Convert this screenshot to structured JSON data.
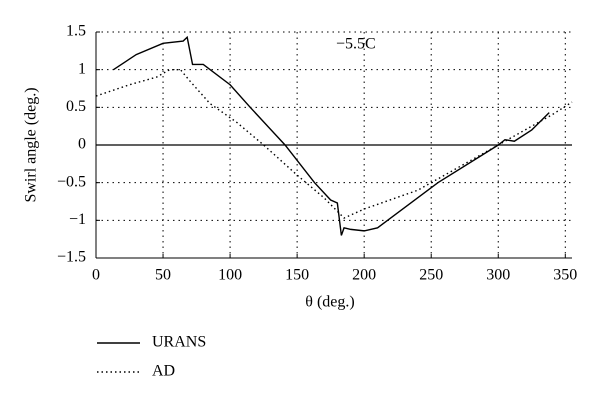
{
  "chart_data": {
    "type": "line",
    "x_label": "θ (deg.)",
    "y_label": "Swirl angle (deg.)",
    "annotation": "−5.5C",
    "xlim": [
      0,
      355
    ],
    "ylim": [
      -1.5,
      1.5
    ],
    "xticks": [
      0,
      50,
      100,
      150,
      200,
      250,
      300,
      350
    ],
    "yticks": [
      {
        "value": -1.5,
        "label": "−1.5"
      },
      {
        "value": -1,
        "label": "−1"
      },
      {
        "value": -0.5,
        "label": "−0.5"
      },
      0,
      0.5,
      1,
      1.5
    ],
    "grid": true,
    "series": [
      {
        "name": "URANS",
        "color": "#000",
        "dash": "solid",
        "x": [
          13,
          30,
          50,
          65,
          68,
          72,
          80,
          100,
          115,
          141,
          163,
          175,
          180,
          183,
          185,
          190,
          200,
          210,
          255,
          300,
          305,
          312,
          325,
          338
        ],
        "values": [
          1.0,
          1.2,
          1.35,
          1.38,
          1.43,
          1.07,
          1.07,
          0.8,
          0.5,
          0,
          -0.5,
          -0.73,
          -0.77,
          -1.2,
          -1.1,
          -1.12,
          -1.14,
          -1.1,
          -0.5,
          0,
          0.07,
          0.05,
          0.2,
          0.43
        ]
      },
      {
        "name": "AD",
        "color": "#000",
        "dash": "dotted",
        "x": [
          0,
          25,
          45,
          55,
          63,
          70,
          85,
          105,
          125,
          150,
          170,
          185,
          200,
          240,
          270,
          300,
          315,
          340,
          355
        ],
        "values": [
          0.65,
          0.8,
          0.9,
          1.0,
          1.0,
          0.85,
          0.55,
          0.3,
          0,
          -0.4,
          -0.7,
          -0.97,
          -0.85,
          -0.6,
          -0.3,
          0,
          0.15,
          0.4,
          0.57
        ]
      }
    ]
  }
}
